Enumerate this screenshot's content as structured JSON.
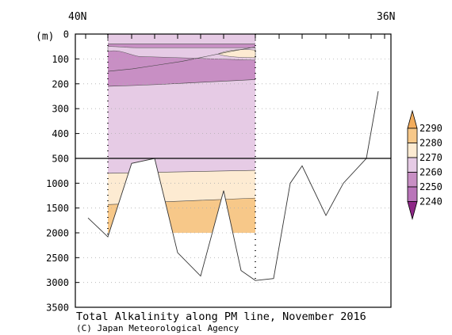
{
  "chart_data": {
    "type": "heatmap",
    "title": "Total Alkalinity along PM line, November 2016",
    "credit": "(C) Japan Meteorological Agency",
    "x_top_labels": [
      "40N",
      "36N"
    ],
    "y_unit_label": "(m)",
    "y_ticks_upper": [
      0,
      100,
      200,
      300,
      400,
      500
    ],
    "y_ticks_lower": [
      1000,
      1500,
      2000,
      2500,
      3000,
      3500
    ],
    "y_split_depth": 500,
    "colorbar": {
      "levels": [
        "2240",
        "2250",
        "2260",
        "2270",
        "2280",
        "2290"
      ],
      "colors": [
        "#8e2787",
        "#b975b9",
        "#c88fc4",
        "#e6cbe5",
        "#fdebd2",
        "#f7c889",
        "#f2ac5c"
      ],
      "extends": "both"
    },
    "bottom_topography_depth_m": [
      1700,
      2080,
      600,
      500,
      2400,
      2870,
      1150,
      2760,
      2960,
      2920,
      1000,
      650,
      1650,
      1000,
      500,
      230
    ],
    "contour_depth_m": {
      "t2260_top": [
        40,
        40,
        40,
        40,
        40,
        40,
        40
      ],
      "t2260_mid": [
        150,
        140,
        125,
        110,
        90,
        70,
        52
      ],
      "t2270_a": [
        210,
        207,
        203,
        198,
        193,
        188,
        183
      ],
      "t2280_ridge": [
        1430,
        1410,
        1380,
        1360,
        1340,
        1320,
        1300
      ],
      "t2270_b": [
        800,
        790,
        780,
        770,
        760,
        750,
        740
      ]
    }
  }
}
